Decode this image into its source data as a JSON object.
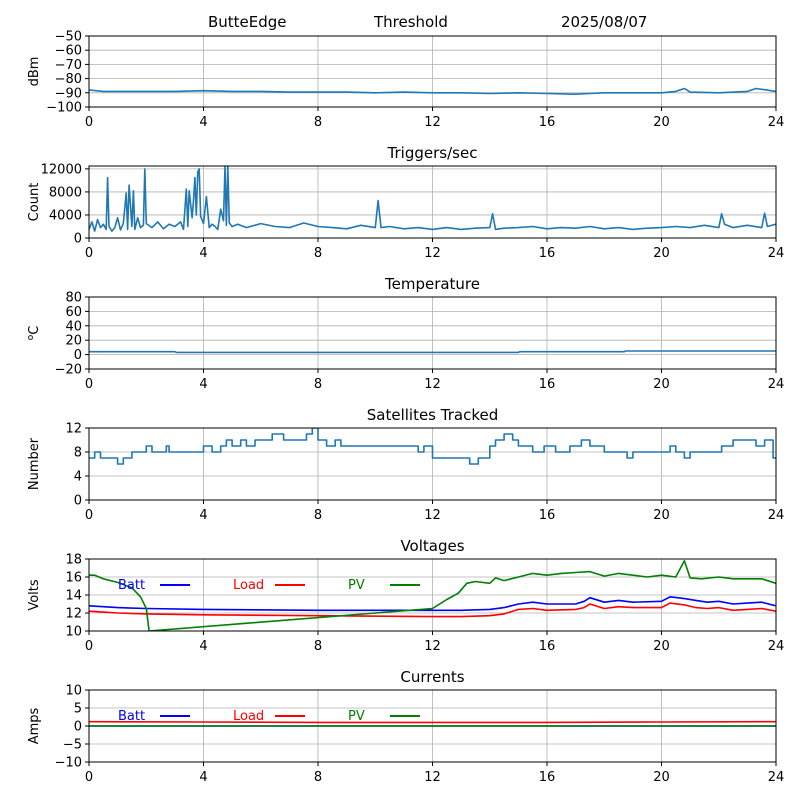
{
  "header": {
    "station": "ButteEdge",
    "mode": "Threshold",
    "date": "2025/08/07"
  },
  "colors": {
    "signal": "#1f77b4",
    "batt": "#0000ff",
    "load": "#ff0000",
    "pv": "#008000",
    "grid": "#b0b0b0",
    "axis": "#000000"
  },
  "chart_data": [
    {
      "type": "line",
      "title": "",
      "xlabel": "",
      "ylabel": "dBm",
      "xlim": [
        0,
        24
      ],
      "ylim": [
        -100,
        -50
      ],
      "xticks": [
        0,
        4,
        8,
        12,
        16,
        20,
        24
      ],
      "yticks": [
        -100,
        -90,
        -80,
        -70,
        -60,
        -50
      ],
      "grid": true,
      "series": [
        {
          "color": "#1f77b4",
          "x": [
            0,
            0.5,
            1,
            2,
            3,
            4,
            5,
            6,
            7,
            8,
            9,
            10,
            11,
            12,
            13,
            14,
            15,
            16,
            17,
            17.5,
            18,
            19,
            20,
            20.5,
            20.8,
            21,
            22,
            23,
            23.3,
            24
          ],
          "y": [
            -88,
            -89,
            -89,
            -89,
            -89,
            -88.5,
            -89,
            -89,
            -89.5,
            -89.5,
            -89.5,
            -90,
            -89.5,
            -90,
            -90,
            -90.5,
            -90,
            -90.5,
            -91,
            -90.5,
            -90,
            -90,
            -90,
            -89,
            -87,
            -89.5,
            -90,
            -89,
            -87,
            -89
          ]
        }
      ]
    },
    {
      "type": "line",
      "title": "Triggers/sec",
      "xlabel": "",
      "ylabel": "Count",
      "xlim": [
        0,
        24
      ],
      "ylim": [
        0,
        12500
      ],
      "xticks": [
        0,
        4,
        8,
        12,
        16,
        20,
        24
      ],
      "yticks": [
        0,
        4000,
        8000,
        12000
      ],
      "grid": true,
      "series": [
        {
          "color": "#1f77b4",
          "x": [
            0,
            0.1,
            0.2,
            0.3,
            0.4,
            0.5,
            0.6,
            0.65,
            0.7,
            0.8,
            0.9,
            1.0,
            1.1,
            1.2,
            1.3,
            1.35,
            1.4,
            1.5,
            1.55,
            1.6,
            1.7,
            1.8,
            1.9,
            1.95,
            2.0,
            2.2,
            2.4,
            2.6,
            2.8,
            3.0,
            3.2,
            3.3,
            3.4,
            3.45,
            3.5,
            3.6,
            3.65,
            3.7,
            3.75,
            3.8,
            3.85,
            3.9,
            4.0,
            4.1,
            4.2,
            4.3,
            4.4,
            4.5,
            4.6,
            4.7,
            4.75,
            4.8,
            4.85,
            4.9,
            5.0,
            5.2,
            5.5,
            6.0,
            6.5,
            7.0,
            7.5,
            8.0,
            8.5,
            9.0,
            9.5,
            10.0,
            10.1,
            10.2,
            10.5,
            11.0,
            11.5,
            12.0,
            12.5,
            13.0,
            13.5,
            14.0,
            14.1,
            14.2,
            14.5,
            15.0,
            15.5,
            16.0,
            16.5,
            17.0,
            17.5,
            18.0,
            18.5,
            19.0,
            19.5,
            20.0,
            20.5,
            21.0,
            21.5,
            22.0,
            22.1,
            22.2,
            22.5,
            23.0,
            23.5,
            23.6,
            23.7,
            24.0
          ],
          "y": [
            1500,
            2800,
            1200,
            3200,
            1800,
            2400,
            1500,
            10500,
            2000,
            1200,
            1800,
            3500,
            1400,
            2500,
            7800,
            1500,
            9200,
            2000,
            8200,
            1500,
            3500,
            1800,
            2200,
            12000,
            2500,
            1800,
            2800,
            1600,
            2400,
            2000,
            2800,
            1500,
            8500,
            2000,
            8200,
            3500,
            6500,
            10500,
            4000,
            11500,
            12000,
            3800,
            2500,
            7200,
            1800,
            2400,
            2000,
            1500,
            5000,
            3000,
            12500,
            2200,
            12500,
            2600,
            2000,
            2400,
            1800,
            2500,
            2000,
            1800,
            2600,
            2000,
            1800,
            1600,
            2200,
            1800,
            6500,
            1800,
            2000,
            1600,
            1800,
            1500,
            1800,
            1500,
            1700,
            1800,
            4200,
            1500,
            1700,
            1800,
            2000,
            1600,
            1800,
            1700,
            2000,
            1600,
            1800,
            1500,
            1700,
            1800,
            2000,
            1800,
            2200,
            1800,
            4200,
            2400,
            1800,
            2200,
            1800,
            4300,
            2000,
            2400
          ]
        }
      ]
    },
    {
      "type": "line",
      "title": "Temperature",
      "xlabel": "",
      "ylabel": "oC",
      "xlim": [
        0,
        24
      ],
      "ylim": [
        -20,
        80
      ],
      "xticks": [
        0,
        4,
        8,
        12,
        16,
        20,
        24
      ],
      "yticks": [
        -20,
        0,
        20,
        40,
        60,
        80
      ],
      "grid": true,
      "series": [
        {
          "color": "#1f77b4",
          "x": [
            0,
            3,
            3.05,
            15,
            15.05,
            18.7,
            18.75,
            24
          ],
          "y": [
            4,
            4,
            3,
            3,
            4,
            4,
            5,
            5
          ]
        }
      ]
    },
    {
      "type": "line",
      "title": "Satellites Tracked",
      "xlabel": "",
      "ylabel": "Number",
      "xlim": [
        0,
        24
      ],
      "ylim": [
        0,
        12
      ],
      "xticks": [
        0,
        4,
        8,
        12,
        16,
        20,
        24
      ],
      "yticks": [
        0,
        4,
        8,
        12
      ],
      "grid": true,
      "series": [
        {
          "color": "#1f77b4",
          "step": true,
          "x": [
            0,
            0.2,
            0.4,
            0.8,
            1.0,
            1.2,
            1.5,
            1.8,
            2.0,
            2.2,
            2.5,
            2.7,
            2.8,
            3.0,
            4.0,
            4.3,
            4.6,
            4.8,
            5.0,
            5.3,
            5.5,
            5.8,
            6.0,
            6.4,
            6.8,
            7.2,
            7.6,
            7.8,
            8.0,
            8.3,
            8.6,
            8.8,
            9.0,
            9.2,
            9.5,
            10.0,
            10.5,
            11.0,
            11.5,
            11.7,
            12.0,
            12.5,
            13.0,
            13.3,
            13.6,
            14.0,
            14.2,
            14.5,
            14.8,
            15.0,
            15.5,
            15.9,
            16.3,
            16.8,
            17.0,
            17.2,
            17.5,
            18.0,
            18.5,
            18.8,
            19.0,
            19.3,
            19.6,
            20.0,
            20.3,
            20.5,
            20.8,
            21.0,
            21.4,
            21.8,
            22.1,
            22.3,
            22.5,
            22.9,
            23.3,
            23.6,
            23.9,
            24.0
          ],
          "y": [
            7,
            8,
            7,
            7,
            6,
            7,
            8,
            8,
            9,
            8,
            8,
            9,
            8,
            8,
            9,
            8,
            9,
            10,
            9,
            10,
            9,
            10,
            10,
            11,
            10,
            10,
            11,
            12,
            10,
            9,
            10,
            9,
            9,
            9,
            9,
            9,
            9,
            9,
            8,
            9,
            7,
            7,
            7,
            6,
            7,
            9,
            10,
            11,
            10,
            9,
            8,
            9,
            8,
            9,
            9,
            10,
            9,
            8,
            8,
            7,
            8,
            8,
            8,
            8,
            9,
            8,
            7,
            8,
            8,
            8,
            9,
            9,
            10,
            10,
            9,
            10,
            7,
            7
          ]
        }
      ]
    },
    {
      "type": "line",
      "title": "Voltages",
      "xlabel": "",
      "ylabel": "Volts",
      "xlim": [
        0,
        24
      ],
      "ylim": [
        10,
        18
      ],
      "xticks": [
        0,
        4,
        8,
        12,
        16,
        20,
        24
      ],
      "yticks": [
        10,
        12,
        14,
        16,
        18
      ],
      "grid": true,
      "legend": "upper-left",
      "series": [
        {
          "name": "Batt",
          "color": "#0000ff",
          "x": [
            0,
            0.5,
            1,
            2,
            4,
            8,
            12,
            13,
            14,
            14.5,
            15,
            15.5,
            16,
            17,
            17.3,
            17.5,
            18,
            18.5,
            19,
            20,
            20.3,
            20.8,
            21.2,
            21.6,
            22,
            22.5,
            23,
            23.5,
            24
          ],
          "y": [
            12.8,
            12.7,
            12.6,
            12.5,
            12.4,
            12.3,
            12.3,
            12.3,
            12.4,
            12.6,
            13.0,
            13.2,
            13.0,
            13.0,
            13.3,
            13.7,
            13.2,
            13.4,
            13.2,
            13.3,
            13.8,
            13.6,
            13.4,
            13.2,
            13.3,
            13.0,
            13.1,
            13.2,
            12.8
          ]
        },
        {
          "name": "Load",
          "color": "#ff0000",
          "x": [
            0,
            0.5,
            1,
            2,
            4,
            8,
            12,
            13,
            14,
            14.5,
            15,
            15.5,
            16,
            17,
            17.3,
            17.5,
            18,
            18.5,
            19,
            20,
            20.3,
            20.8,
            21.2,
            21.6,
            22,
            22.5,
            23,
            23.5,
            24
          ],
          "y": [
            12.2,
            12.1,
            12.0,
            11.9,
            11.8,
            11.7,
            11.6,
            11.6,
            11.7,
            11.9,
            12.4,
            12.5,
            12.3,
            12.4,
            12.6,
            13.0,
            12.5,
            12.7,
            12.6,
            12.6,
            13.1,
            12.9,
            12.6,
            12.5,
            12.6,
            12.3,
            12.4,
            12.5,
            12.2
          ]
        },
        {
          "name": "PV",
          "color": "#008000",
          "x": [
            0,
            0.2,
            0.5,
            1.0,
            1.5,
            1.8,
            2.0,
            2.1,
            12.0,
            12.5,
            12.9,
            13.2,
            13.5,
            14.0,
            14.2,
            14.5,
            15.0,
            15.5,
            16.0,
            16.5,
            17.0,
            17.5,
            18.0,
            18.5,
            19.0,
            19.5,
            20.0,
            20.5,
            20.8,
            21.0,
            21.4,
            22.0,
            22.5,
            23.0,
            23.5,
            24.0
          ],
          "y": [
            16.2,
            16.2,
            15.8,
            15.4,
            14.8,
            13.8,
            12.5,
            10.0,
            12.5,
            13.5,
            14.2,
            15.3,
            15.5,
            15.3,
            15.9,
            15.6,
            16.0,
            16.4,
            16.2,
            16.4,
            16.5,
            16.6,
            16.1,
            16.4,
            16.2,
            16.0,
            16.2,
            16.0,
            17.8,
            15.9,
            15.8,
            16.0,
            15.8,
            15.8,
            15.8,
            15.3
          ]
        }
      ]
    },
    {
      "type": "line",
      "title": "Currents",
      "xlabel": "",
      "ylabel": "Amps",
      "xlim": [
        0,
        24
      ],
      "ylim": [
        -10,
        10
      ],
      "xticks": [
        0,
        4,
        8,
        12,
        16,
        20,
        24
      ],
      "yticks": [
        -10,
        -5,
        0,
        5,
        10
      ],
      "grid": true,
      "legend": "upper-left",
      "series": [
        {
          "name": "Batt",
          "color": "#0000ff",
          "x": [
            0,
            24
          ],
          "y": [
            0.0,
            0.0
          ]
        },
        {
          "name": "Load",
          "color": "#ff0000",
          "x": [
            0,
            4,
            8,
            12,
            16,
            20,
            24
          ],
          "y": [
            1.2,
            1.1,
            1.0,
            1.0,
            1.0,
            1.1,
            1.2
          ]
        },
        {
          "name": "PV",
          "color": "#008000",
          "x": [
            0,
            24
          ],
          "y": [
            0.0,
            0.0
          ]
        }
      ]
    }
  ]
}
